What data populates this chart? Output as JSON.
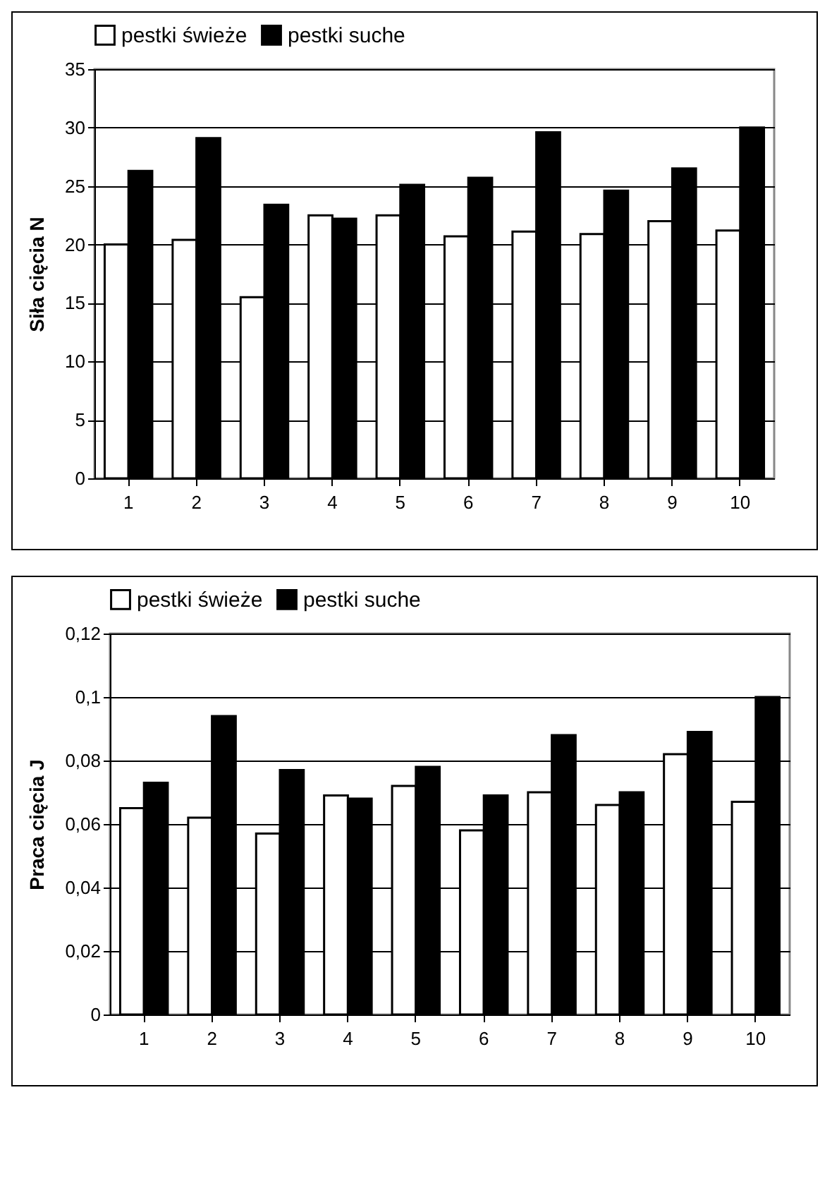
{
  "chart_data": [
    {
      "type": "bar",
      "ylabel": "Siła cięcia N",
      "categories": [
        "1",
        "2",
        "3",
        "4",
        "5",
        "6",
        "7",
        "8",
        "9",
        "10"
      ],
      "series": [
        {
          "name": "pestki świeże",
          "color": "#ffffff",
          "values": [
            20.0,
            20.4,
            15.5,
            22.5,
            22.5,
            20.7,
            21.1,
            20.9,
            22.0,
            21.2
          ]
        },
        {
          "name": "pestki suche",
          "color": "#000000",
          "values": [
            26.3,
            29.1,
            23.4,
            22.2,
            25.1,
            25.7,
            29.6,
            24.6,
            26.5,
            30.0
          ]
        }
      ],
      "ylim": [
        0,
        35
      ],
      "yticks": [
        0,
        5,
        10,
        15,
        20,
        25,
        30,
        35
      ],
      "grid": "y",
      "legend": "top"
    },
    {
      "type": "bar",
      "ylabel": "Praca cięcia J",
      "categories": [
        "1",
        "2",
        "3",
        "4",
        "5",
        "6",
        "7",
        "8",
        "9",
        "10"
      ],
      "series": [
        {
          "name": "pestki świeże",
          "color": "#ffffff",
          "values": [
            0.065,
            0.062,
            0.057,
            0.069,
            0.072,
            0.058,
            0.07,
            0.066,
            0.082,
            0.067
          ]
        },
        {
          "name": "pestki suche",
          "color": "#000000",
          "values": [
            0.073,
            0.094,
            0.077,
            0.068,
            0.078,
            0.069,
            0.088,
            0.07,
            0.089,
            0.1
          ]
        }
      ],
      "ylim": [
        0,
        0.12
      ],
      "yticks": [
        0,
        {
          "value": 0.02,
          "label": "0,02"
        },
        {
          "value": 0.04,
          "label": "0,04"
        },
        {
          "value": 0.06,
          "label": "0,06"
        },
        {
          "value": 0.08,
          "label": "0,08"
        },
        {
          "value": 0.1,
          "label": "0,1"
        },
        {
          "value": 0.12,
          "label": "0,12"
        }
      ],
      "grid": "y",
      "legend": "top"
    }
  ]
}
